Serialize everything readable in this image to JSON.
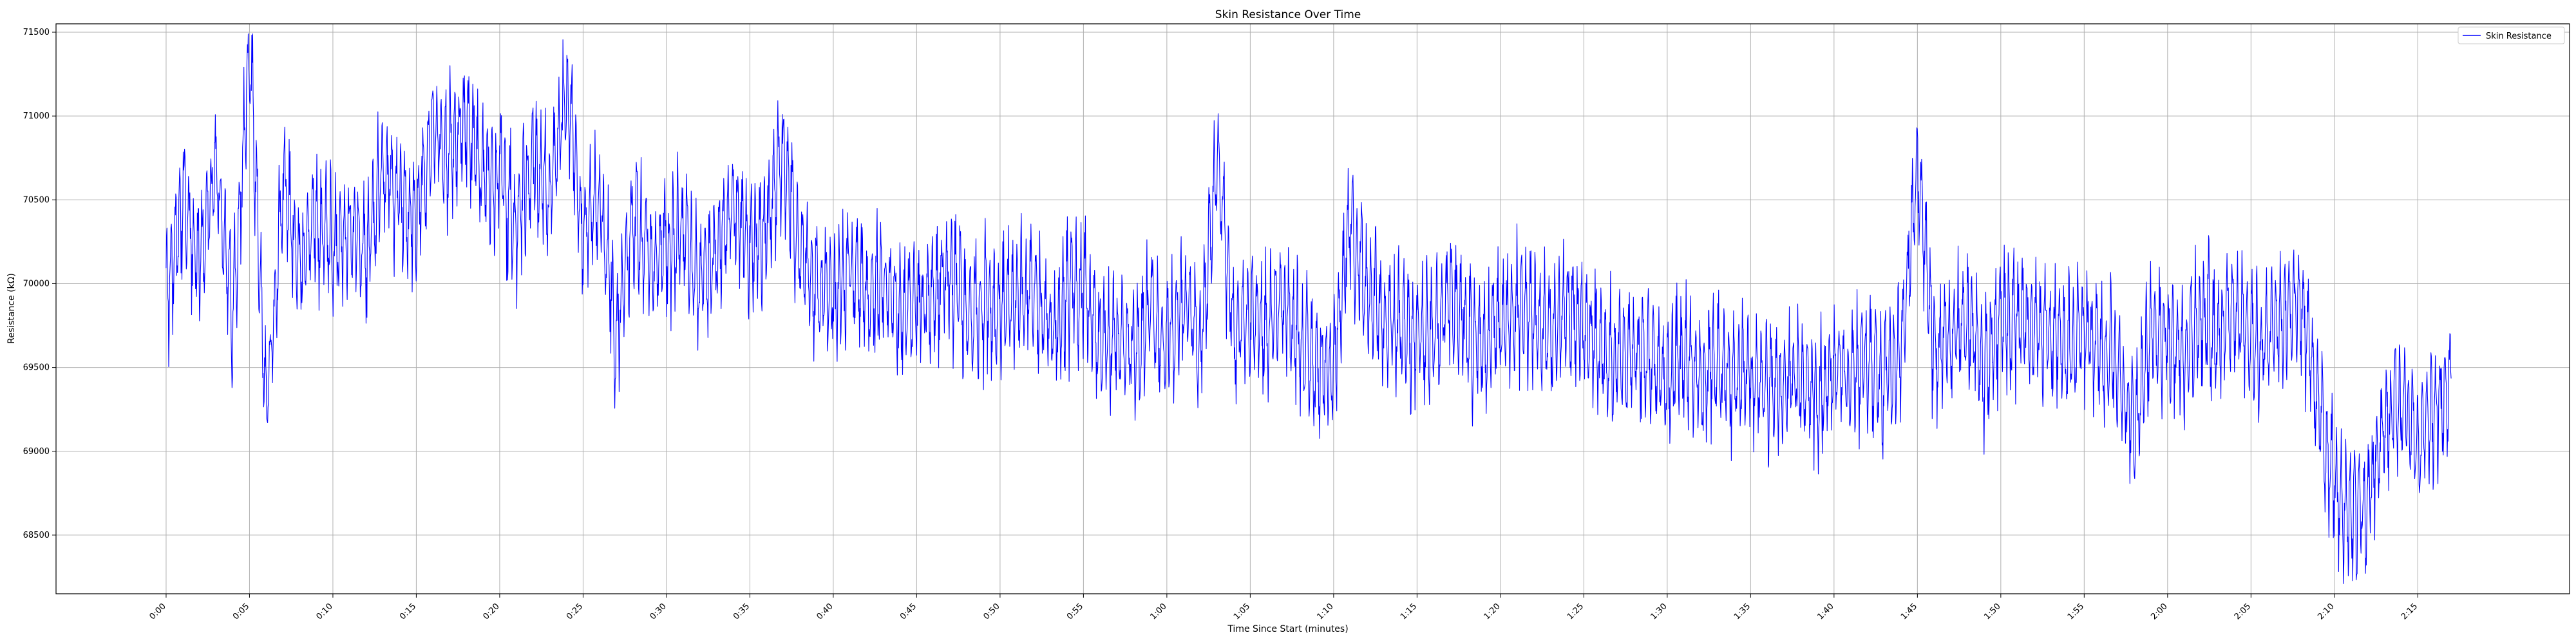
{
  "chart_data": {
    "type": "line",
    "title": "Skin Resistance Over Time",
    "xlabel": "Time Since Start (minutes)",
    "ylabel": "Resistance (kΩ)",
    "x_unit": "minutes",
    "xlim": [
      -1.65,
      9.3
    ],
    "ylim": [
      68150,
      71550
    ],
    "x_ticks": [
      {
        "value": 0,
        "label": "0:00"
      },
      {
        "value": 5,
        "label": "0:05"
      },
      {
        "value": 10,
        "label": "0:10"
      },
      {
        "value": 15,
        "label": "0:15"
      },
      {
        "value": 20,
        "label": "0:20"
      },
      {
        "value": 25,
        "label": "0:25"
      },
      {
        "value": 30,
        "label": "0:30"
      },
      {
        "value": 35,
        "label": "0:35"
      },
      {
        "value": 40,
        "label": "0:40"
      },
      {
        "value": 45,
        "label": "0:45"
      },
      {
        "value": 50,
        "label": "0:50"
      },
      {
        "value": 55,
        "label": "0:55"
      },
      {
        "value": 60,
        "label": "1:00"
      },
      {
        "value": 65,
        "label": "1:05"
      },
      {
        "value": 70,
        "label": "1:10"
      },
      {
        "value": 75,
        "label": "1:15"
      },
      {
        "value": 80,
        "label": "1:20"
      },
      {
        "value": 85,
        "label": "1:25"
      },
      {
        "value": 90,
        "label": "1:30"
      },
      {
        "value": 95,
        "label": "1:35"
      },
      {
        "value": 100,
        "label": "1:40"
      },
      {
        "value": 105,
        "label": "1:45"
      },
      {
        "value": 110,
        "label": "1:50"
      },
      {
        "value": 115,
        "label": "1:55"
      },
      {
        "value": 120,
        "label": "2:00"
      },
      {
        "value": 125,
        "label": "2:05"
      },
      {
        "value": 130,
        "label": "2:10"
      },
      {
        "value": 135,
        "label": "2:15"
      }
    ],
    "x_range_minutes": [
      -6.6,
      144.1
    ],
    "y_ticks": [
      68500,
      69000,
      69500,
      70000,
      70500,
      71000,
      71500
    ],
    "grid": true,
    "legend_position": "top-right",
    "series": [
      {
        "name": "Skin Resistance",
        "color": "#0000ff",
        "x": [
          0,
          1,
          2,
          3,
          4,
          5,
          6,
          7,
          8,
          9,
          10,
          11,
          12,
          13,
          14,
          15,
          16,
          17,
          18,
          19,
          20,
          21,
          22,
          23,
          24,
          25,
          26,
          27,
          28,
          29,
          30,
          31,
          32,
          33,
          34,
          35,
          36,
          37,
          38,
          39,
          40,
          41,
          42,
          43,
          44,
          45,
          46,
          47,
          48,
          49,
          50,
          51,
          52,
          53,
          54,
          55,
          56,
          57,
          58,
          59,
          60,
          61,
          62,
          63,
          64,
          65,
          66,
          67,
          68,
          69,
          70,
          71,
          72,
          73,
          74,
          75,
          76,
          77,
          78,
          79,
          80,
          81,
          82,
          83,
          84,
          85,
          86,
          87,
          88,
          89,
          90,
          91,
          92,
          93,
          94,
          95,
          96,
          97,
          98,
          99,
          100,
          101,
          102,
          103,
          104,
          105,
          106,
          107,
          108,
          109,
          110,
          111,
          112,
          113,
          114,
          115,
          116,
          117,
          118,
          119,
          120,
          121,
          122,
          123,
          124,
          125,
          126,
          127,
          128,
          129,
          130,
          131,
          132,
          133,
          134,
          135,
          136,
          137
        ],
        "y": [
          69900,
          70500,
          70100,
          70700,
          69800,
          71400,
          69200,
          70600,
          70100,
          70400,
          70200,
          70350,
          70150,
          70700,
          70500,
          70400,
          70900,
          70800,
          71000,
          70600,
          70700,
          70300,
          70800,
          70500,
          71200,
          70300,
          70500,
          69700,
          70400,
          70100,
          70200,
          70300,
          70000,
          70200,
          70500,
          70200,
          70300,
          70800,
          70200,
          70000,
          69900,
          70100,
          69900,
          70000,
          69800,
          69900,
          69900,
          70100,
          69800,
          69900,
          69800,
          69900,
          70000,
          69700,
          69950,
          70000,
          69600,
          69700,
          69600,
          69800,
          69650,
          69900,
          69600,
          70800,
          69700,
          69800,
          69700,
          69900,
          69600,
          69500,
          69500,
          70400,
          69900,
          69800,
          69750,
          69700,
          69700,
          69900,
          69700,
          69600,
          69750,
          69850,
          69800,
          69700,
          69850,
          69750,
          69550,
          69600,
          69600,
          69550,
          69400,
          69550,
          69400,
          69550,
          69450,
          69450,
          69350,
          69400,
          69500,
          69350,
          69500,
          69450,
          69550,
          69400,
          69600,
          70700,
          69600,
          69700,
          69800,
          69500,
          69800,
          69800,
          69700,
          69700,
          69600,
          69700,
          69600,
          69500,
          69100,
          69700,
          69700,
          69600,
          69800,
          69700,
          69850,
          69700,
          69650,
          69800,
          69900,
          69300,
          68800,
          68650,
          68700,
          69200,
          69300,
          69100,
          69200,
          69400
        ]
      }
    ]
  }
}
